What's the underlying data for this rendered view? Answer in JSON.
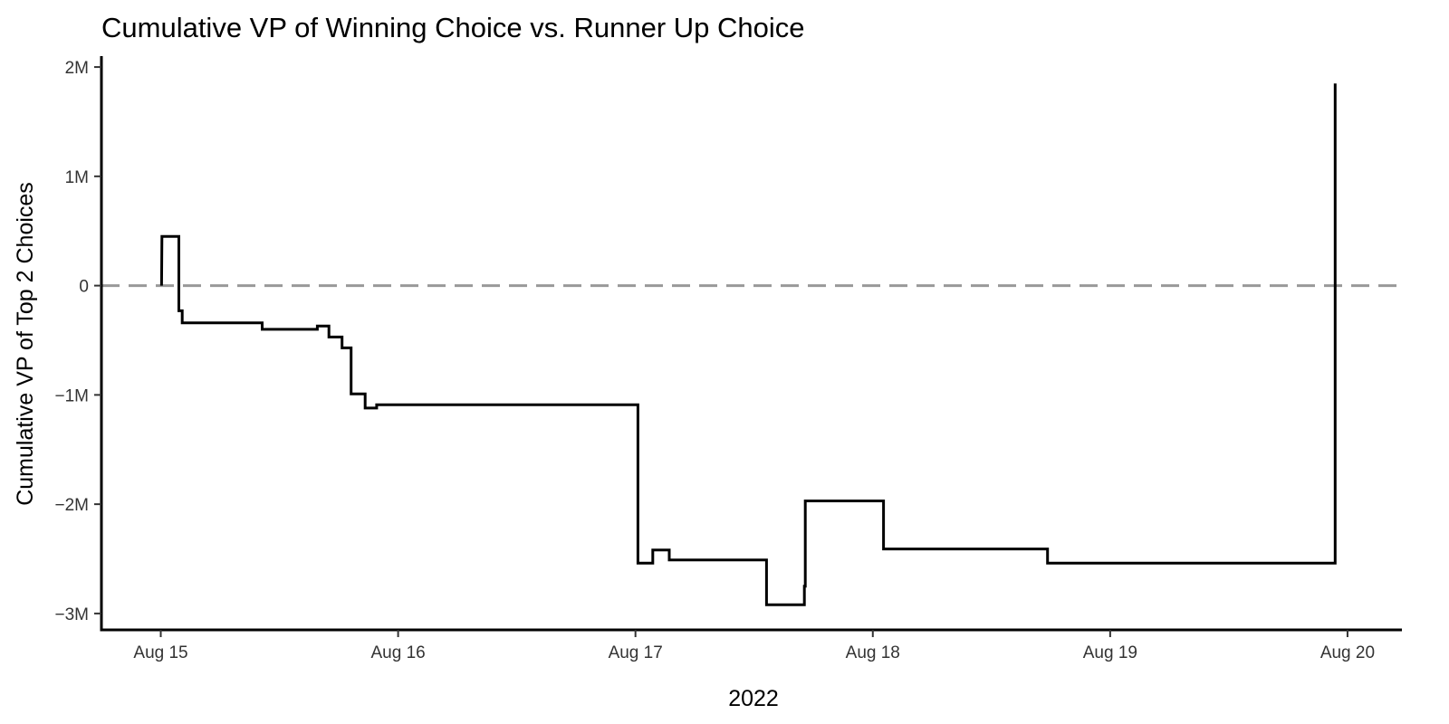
{
  "chart_data": {
    "type": "line",
    "title": "Cumulative VP of Winning Choice vs. Runner Up Choice",
    "xlabel": "2022",
    "ylabel": "Cumulative VP of Top 2 Choices",
    "x_unit": "days",
    "xlim": [
      "2022-08-14 18:00",
      "2022-08-20 05:30"
    ],
    "ylim": [
      -3150000,
      2100000
    ],
    "x_ticks": [
      {
        "date": "2022-08-15 00:00",
        "label": "Aug 15"
      },
      {
        "date": "2022-08-16 00:00",
        "label": "Aug 16"
      },
      {
        "date": "2022-08-17 00:00",
        "label": "Aug 17"
      },
      {
        "date": "2022-08-18 00:00",
        "label": "Aug 18"
      },
      {
        "date": "2022-08-19 00:00",
        "label": "Aug 19"
      },
      {
        "date": "2022-08-20 00:00",
        "label": "Aug 20"
      }
    ],
    "y_ticks": [
      {
        "value": 2000000,
        "label": "2M"
      },
      {
        "value": 1000000,
        "label": "1M"
      },
      {
        "value": 0,
        "label": "0"
      },
      {
        "value": -1000000,
        "label": "−1M"
      },
      {
        "value": -2000000,
        "label": "−2M"
      },
      {
        "value": -3000000,
        "label": "−3M"
      }
    ],
    "reference_line": {
      "value": 0,
      "style": "dashed",
      "color": "#999999"
    },
    "grid": false,
    "legend": "none",
    "series": [
      {
        "style": "step",
        "color": "#000000",
        "points": [
          [
            "2022-08-15 00:05",
            0
          ],
          [
            "2022-08-15 00:07",
            450000
          ],
          [
            "2022-08-15 01:50",
            450000
          ],
          [
            "2022-08-15 01:50",
            -230000
          ],
          [
            "2022-08-15 02:10",
            -230000
          ],
          [
            "2022-08-15 02:10",
            -340000
          ],
          [
            "2022-08-15 10:15",
            -340000
          ],
          [
            "2022-08-15 10:15",
            -400000
          ],
          [
            "2022-08-15 15:50",
            -400000
          ],
          [
            "2022-08-15 15:50",
            -370000
          ],
          [
            "2022-08-15 17:00",
            -370000
          ],
          [
            "2022-08-15 17:00",
            -470000
          ],
          [
            "2022-08-15 18:20",
            -470000
          ],
          [
            "2022-08-15 18:20",
            -570000
          ],
          [
            "2022-08-15 19:15",
            -570000
          ],
          [
            "2022-08-15 19:15",
            -990000
          ],
          [
            "2022-08-15 20:40",
            -990000
          ],
          [
            "2022-08-15 20:40",
            -1120000
          ],
          [
            "2022-08-15 21:50",
            -1120000
          ],
          [
            "2022-08-15 21:50",
            -1090000
          ],
          [
            "2022-08-17 00:15",
            -1090000
          ],
          [
            "2022-08-17 00:15",
            -2540000
          ],
          [
            "2022-08-17 01:45",
            -2540000
          ],
          [
            "2022-08-17 01:45",
            -2420000
          ],
          [
            "2022-08-17 03:25",
            -2420000
          ],
          [
            "2022-08-17 03:25",
            -2510000
          ],
          [
            "2022-08-17 13:15",
            -2510000
          ],
          [
            "2022-08-17 13:15",
            -2920000
          ],
          [
            "2022-08-17 17:05",
            -2920000
          ],
          [
            "2022-08-17 17:05",
            -2750000
          ],
          [
            "2022-08-17 17:10",
            -2750000
          ],
          [
            "2022-08-17 17:10",
            -1970000
          ],
          [
            "2022-08-18 01:05",
            -1970000
          ],
          [
            "2022-08-18 01:05",
            -2410000
          ],
          [
            "2022-08-18 17:40",
            -2410000
          ],
          [
            "2022-08-18 17:40",
            -2540000
          ],
          [
            "2022-08-19 22:45",
            -2540000
          ],
          [
            "2022-08-19 22:45",
            1850000
          ]
        ]
      }
    ]
  }
}
